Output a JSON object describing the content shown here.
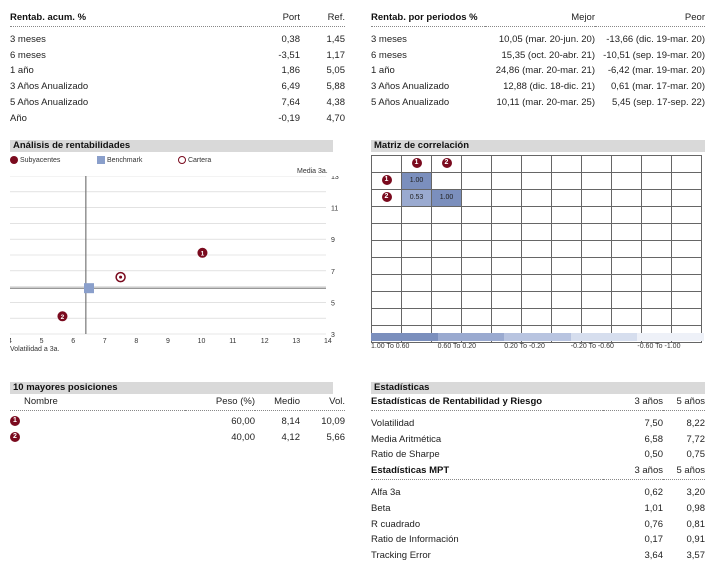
{
  "rentab_acum": {
    "title": "Rentab. acum. %",
    "col_port": "Port",
    "col_ref": "Ref.",
    "rows": [
      {
        "label": "3 meses",
        "port": "0,38",
        "ref": "1,45"
      },
      {
        "label": "6 meses",
        "port": "-3,51",
        "ref": "1,17"
      },
      {
        "label": "1 año",
        "port": "1,86",
        "ref": "5,05"
      },
      {
        "label": "3 Años Anualizado",
        "port": "6,49",
        "ref": "5,88"
      },
      {
        "label": "5 Años Anualizado",
        "port": "7,64",
        "ref": "4,38"
      },
      {
        "label": "Año",
        "port": "-0,19",
        "ref": "4,70"
      }
    ]
  },
  "rentab_periodos": {
    "title": "Rentab. por periodos %",
    "col_mejor": "Mejor",
    "col_peor": "Peor",
    "rows": [
      {
        "label": "3 meses",
        "mejor": "10,05 (mar. 20-jun. 20)",
        "peor": "-13,66 (dic. 19-mar. 20)"
      },
      {
        "label": "6 meses",
        "mejor": "15,35 (oct. 20-abr. 21)",
        "peor": "-10,51 (sep. 19-mar. 20)"
      },
      {
        "label": "1 año",
        "mejor": "24,86 (mar. 20-mar. 21)",
        "peor": "-6,42 (mar. 19-mar. 20)"
      },
      {
        "label": "3 Años Anualizado",
        "mejor": "12,88 (dic. 18-dic. 21)",
        "peor": "0,61 (mar. 17-mar. 20)"
      },
      {
        "label": "5 Años Anualizado",
        "mejor": "10,11 (mar. 20-mar. 25)",
        "peor": "5,45 (sep. 17-sep. 22)"
      }
    ]
  },
  "analisis": {
    "title": "Análisis de rentabilidades",
    "legend": [
      "Subyacentes",
      "Benchmark",
      "Cartera"
    ],
    "ylabel": "Media 3a.",
    "xlabel": "Volatilidad a 3a.",
    "yticks": [
      "13",
      "11",
      "9",
      "7",
      "5",
      "3"
    ],
    "xticks": [
      "4",
      "5",
      "6",
      "7",
      "8",
      "9",
      "10",
      "11",
      "12",
      "13",
      "14"
    ],
    "point_labels": [
      "1",
      "2"
    ]
  },
  "chart_data": {
    "type": "scatter",
    "xlabel": "Volatilidad a 3a.",
    "ylabel": "Media 3a.",
    "xlim": [
      4,
      14
    ],
    "ylim": [
      3,
      13
    ],
    "series": [
      {
        "name": "Subyacentes",
        "points": [
          {
            "label": "1",
            "x": 10.09,
            "y": 8.14
          },
          {
            "label": "2",
            "x": 5.66,
            "y": 4.12
          }
        ]
      },
      {
        "name": "Benchmark",
        "points": [
          {
            "x": 6.5,
            "y": 5.9
          }
        ]
      },
      {
        "name": "Cartera",
        "points": [
          {
            "x": 7.5,
            "y": 6.6
          }
        ]
      }
    ],
    "crosshair": {
      "x": 6.4,
      "y": 5.9
    }
  },
  "matriz": {
    "title": "Matriz de correlación",
    "headers": [
      "1",
      "2"
    ],
    "values": [
      [
        "1.00",
        ""
      ],
      [
        "0.53",
        "1.00"
      ]
    ],
    "legend": [
      "1.00 To 0.60",
      "0.60 To 0.20",
      "0.20 To -0.20",
      "-0.20 To -0.60",
      "-0.60 To -1.00"
    ],
    "legend_colors": [
      "#7b8fbd",
      "#9aaad0",
      "#b8c4e0",
      "#d6deee",
      "#eef1f8"
    ]
  },
  "posiciones": {
    "title": "10 mayores posiciones",
    "col_nombre": "Nombre",
    "col_peso": "Peso (%)",
    "col_medio": "Medio",
    "col_vol": "Vol.",
    "rows": [
      {
        "badge": "1",
        "peso": "60,00",
        "medio": "8,14",
        "vol": "10,09"
      },
      {
        "badge": "2",
        "peso": "40,00",
        "medio": "4,12",
        "vol": "5,66"
      }
    ]
  },
  "estadisticas": {
    "title": "Estadísticas",
    "section1": "Estadísticas de Rentabilidad y Riesgo",
    "section2": "Estadísticas MPT",
    "col_3": "3 años",
    "col_5": "5 años",
    "rows1": [
      {
        "label": "Volatilidad",
        "a": "7,50",
        "b": "8,22"
      },
      {
        "label": "Media Aritmética",
        "a": "6,58",
        "b": "7,72"
      },
      {
        "label": "Ratio de Sharpe",
        "a": "0,50",
        "b": "0,75"
      }
    ],
    "rows2": [
      {
        "label": "Alfa 3a",
        "a": "0,62",
        "b": "3,20"
      },
      {
        "label": "Beta",
        "a": "1,01",
        "b": "0,98"
      },
      {
        "label": "R cuadrado",
        "a": "0,76",
        "b": "0,81"
      },
      {
        "label": "Ratio de Información",
        "a": "0,17",
        "b": "0,91"
      },
      {
        "label": "Tracking Error",
        "a": "3,64",
        "b": "3,57"
      }
    ]
  },
  "colors": {
    "accent": "#7a0a1e",
    "benchmark": "#8a9fcb",
    "grid": "#cccccc"
  }
}
